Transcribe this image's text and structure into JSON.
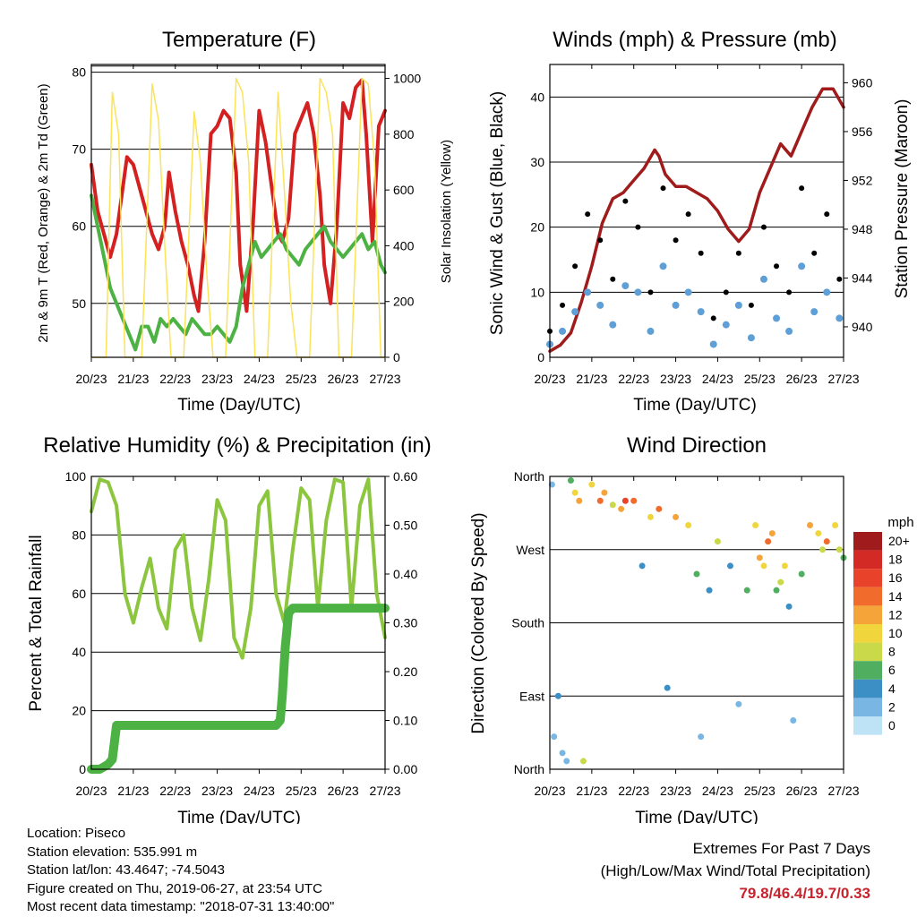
{
  "station": {
    "location": "Location: Piseco",
    "elevation": "Station elevation: 535.991 m",
    "latlon": "Station lat/lon: 43.4647; -74.5043",
    "created": "Figure created on Thu, 2019-06-27, at 23:54 UTC",
    "recent": "Most recent data timestamp: \"2018-07-31 13:40:00\""
  },
  "extremes": {
    "title": "Extremes For Past 7 Days",
    "subtitle": "(High/Low/Max Wind/Total Precipitation)",
    "values": "79.8/46.4/19.7/0.33"
  },
  "colors": {
    "temp2m": "#d42020",
    "temp9m": "#f08a24",
    "dewpoint": "#4cb244",
    "solar": "#fbe35a",
    "gust": "#000000",
    "wind": "#5d9fd6",
    "pressure": "#a01c1c",
    "rh": "#8cc63f",
    "precip": "#4cb244"
  },
  "chart_data": [
    {
      "id": "temperature",
      "type": "line",
      "title": "Temperature (F)",
      "xlabel": "Time (Day/UTC)",
      "ylabel": "2m & 9m T (Red, Orange) & 2m Td (Green)",
      "ylabel_right": "Solar Insolation (Yellow)",
      "xticks": [
        "20/23",
        "21/23",
        "22/23",
        "23/23",
        "24/23",
        "25/23",
        "26/23",
        "27/23"
      ],
      "ylim": [
        43,
        81
      ],
      "yticks": [
        50,
        60,
        70,
        80
      ],
      "ylim_right": [
        0,
        1050
      ],
      "yticks_right": [
        0,
        200,
        400,
        600,
        800,
        1000
      ],
      "grid": true,
      "series": [
        {
          "key": "temp2m",
          "axis": "left",
          "x": [
            0,
            0.15,
            0.3,
            0.45,
            0.6,
            0.75,
            0.85,
            1.0,
            1.15,
            1.3,
            1.45,
            1.6,
            1.75,
            1.85,
            2.0,
            2.15,
            2.3,
            2.45,
            2.55,
            2.7,
            2.85,
            3.0,
            3.15,
            3.3,
            3.45,
            3.55,
            3.7,
            3.85,
            4.0,
            4.15,
            4.3,
            4.45,
            4.55,
            4.7,
            4.85,
            5.0,
            5.15,
            5.3,
            5.45,
            5.55,
            5.7,
            5.85,
            6.0,
            6.15,
            6.3,
            6.45,
            6.55,
            6.7,
            6.85,
            7.0
          ],
          "y": [
            68,
            62,
            59,
            56,
            59,
            65,
            69,
            68,
            65,
            62,
            59,
            57,
            60,
            67,
            62,
            58,
            55,
            51,
            49,
            58,
            72,
            73,
            75,
            74,
            67,
            55,
            49,
            60,
            75,
            71,
            65,
            59,
            58,
            61,
            72,
            74,
            76,
            72,
            64,
            55,
            50,
            60,
            76,
            74,
            78,
            79,
            72,
            58,
            73,
            75
          ]
        },
        {
          "key": "dewpoint",
          "axis": "left",
          "x": [
            0,
            0.15,
            0.3,
            0.45,
            0.6,
            0.75,
            0.9,
            1.05,
            1.2,
            1.35,
            1.5,
            1.65,
            1.8,
            1.95,
            2.1,
            2.25,
            2.4,
            2.55,
            2.7,
            2.85,
            3.0,
            3.15,
            3.3,
            3.45,
            3.6,
            3.75,
            3.9,
            4.05,
            4.2,
            4.35,
            4.5,
            4.65,
            4.8,
            4.95,
            5.1,
            5.25,
            5.4,
            5.55,
            5.7,
            5.85,
            6.0,
            6.15,
            6.3,
            6.45,
            6.6,
            6.75,
            6.9,
            7.0
          ],
          "y": [
            64,
            60,
            56,
            52,
            50,
            48,
            46,
            44,
            47,
            47,
            45,
            48,
            47,
            48,
            47,
            46,
            48,
            47,
            46,
            46,
            47,
            46,
            45,
            47,
            52,
            55,
            58,
            56,
            57,
            58,
            59,
            57,
            56,
            55,
            57,
            58,
            59,
            60,
            58,
            57,
            56,
            57,
            58,
            59,
            57,
            58,
            55,
            54
          ]
        },
        {
          "key": "solar",
          "axis": "right",
          "x": [
            0,
            0.35,
            0.5,
            0.65,
            0.8,
            1.2,
            1.45,
            1.6,
            1.75,
            1.9,
            2.2,
            2.45,
            2.6,
            2.75,
            2.9,
            3.2,
            3.45,
            3.6,
            3.75,
            3.9,
            4.2,
            4.45,
            4.6,
            4.75,
            4.9,
            5.2,
            5.45,
            5.6,
            5.75,
            5.9,
            6.2,
            6.45,
            6.6,
            6.75,
            6.9,
            7.0
          ],
          "y": [
            0,
            0,
            950,
            800,
            0,
            0,
            980,
            850,
            400,
            0,
            0,
            880,
            700,
            300,
            0,
            0,
            1000,
            950,
            700,
            0,
            0,
            950,
            600,
            200,
            0,
            0,
            1000,
            950,
            800,
            0,
            0,
            1000,
            980,
            700,
            0,
            0
          ]
        }
      ]
    },
    {
      "id": "winds",
      "type": "line",
      "title": "Winds (mph) & Pressure (mb)",
      "xlabel": "Time (Day/UTC)",
      "ylabel": "Sonic Wind & Gust (Blue, Black)",
      "ylabel_right": "Station Pressure (Maroon)",
      "xticks": [
        "20/23",
        "21/23",
        "22/23",
        "23/23",
        "24/23",
        "25/23",
        "26/23",
        "27/23"
      ],
      "ylim": [
        0,
        45
      ],
      "yticks": [
        0,
        10,
        20,
        30,
        40
      ],
      "ylim_right": [
        937.5,
        961.5
      ],
      "yticks_right": [
        940,
        944,
        948,
        952,
        956,
        960
      ],
      "grid": true,
      "series": [
        {
          "key": "pressure",
          "axis": "right",
          "x": [
            0,
            0.25,
            0.5,
            0.75,
            1.0,
            1.25,
            1.5,
            1.75,
            2.0,
            2.25,
            2.5,
            2.6,
            2.75,
            3.0,
            3.25,
            3.5,
            3.75,
            4.0,
            4.25,
            4.5,
            4.75,
            5.0,
            5.25,
            5.5,
            5.75,
            6.0,
            6.25,
            6.5,
            6.75,
            7.0
          ],
          "y": [
            938,
            938.5,
            939.5,
            942,
            945,
            948.5,
            950.5,
            951,
            952,
            953,
            954.5,
            954,
            952.5,
            951.5,
            951.5,
            951,
            950.5,
            949.5,
            948,
            947,
            948,
            951,
            953,
            955,
            954,
            956,
            958,
            959.5,
            959.5,
            958
          ]
        },
        {
          "key": "gust",
          "axis": "left",
          "x": [
            0,
            0.3,
            0.6,
            0.9,
            1.2,
            1.5,
            1.8,
            2.1,
            2.4,
            2.7,
            3.0,
            3.3,
            3.6,
            3.9,
            4.2,
            4.5,
            4.8,
            5.1,
            5.4,
            5.7,
            6.0,
            6.3,
            6.6,
            6.9
          ],
          "y": [
            4,
            8,
            14,
            22,
            18,
            12,
            24,
            20,
            10,
            26,
            18,
            22,
            16,
            6,
            10,
            16,
            8,
            20,
            14,
            10,
            26,
            16,
            22,
            12
          ]
        },
        {
          "key": "wind",
          "axis": "left",
          "x": [
            0,
            0.3,
            0.6,
            0.9,
            1.2,
            1.5,
            1.8,
            2.1,
            2.4,
            2.7,
            3.0,
            3.3,
            3.6,
            3.9,
            4.2,
            4.5,
            4.8,
            5.1,
            5.4,
            5.7,
            6.0,
            6.3,
            6.6,
            6.9
          ],
          "y": [
            2,
            4,
            7,
            10,
            8,
            5,
            11,
            10,
            4,
            14,
            8,
            10,
            7,
            2,
            5,
            8,
            3,
            12,
            6,
            4,
            14,
            7,
            10,
            6
          ]
        }
      ]
    },
    {
      "id": "humidity",
      "type": "line",
      "title": "Relative Humidity (%) & Precipitation (in)",
      "xlabel": "Time (Day/UTC)",
      "ylabel": "Percent & Total Rainfall",
      "xticks": [
        "20/23",
        "21/23",
        "22/23",
        "23/23",
        "24/23",
        "25/23",
        "26/23",
        "27/23"
      ],
      "ylim": [
        0,
        100
      ],
      "yticks": [
        0,
        20,
        40,
        60,
        80,
        100
      ],
      "ylim_right": [
        0,
        0.6
      ],
      "yticks_right": [
        "0.00",
        "0.10",
        "0.20",
        "0.30",
        "0.40",
        "0.50",
        "0.60"
      ],
      "grid": true,
      "series": [
        {
          "key": "rh",
          "axis": "left",
          "x": [
            0,
            0.2,
            0.4,
            0.6,
            0.8,
            1.0,
            1.2,
            1.4,
            1.6,
            1.8,
            2.0,
            2.2,
            2.4,
            2.6,
            2.8,
            3.0,
            3.2,
            3.4,
            3.6,
            3.8,
            4.0,
            4.2,
            4.4,
            4.6,
            4.8,
            5.0,
            5.2,
            5.4,
            5.6,
            5.8,
            6.0,
            6.2,
            6.4,
            6.6,
            6.8,
            7.0
          ],
          "y": [
            88,
            99,
            98,
            90,
            60,
            50,
            62,
            72,
            55,
            48,
            75,
            80,
            55,
            44,
            65,
            92,
            85,
            45,
            38,
            55,
            90,
            95,
            60,
            50,
            75,
            96,
            92,
            55,
            85,
            99,
            98,
            55,
            90,
            99,
            60,
            45
          ]
        },
        {
          "key": "precip",
          "axis": "right",
          "x": [
            0,
            0.2,
            0.4,
            0.5,
            0.6,
            1.0,
            2.0,
            3.0,
            4.0,
            4.4,
            4.5,
            4.55,
            4.62,
            4.7,
            4.8,
            5.0,
            6.0,
            7.0
          ],
          "y": [
            0,
            0,
            0.01,
            0.02,
            0.09,
            0.09,
            0.09,
            0.09,
            0.09,
            0.09,
            0.1,
            0.15,
            0.25,
            0.32,
            0.33,
            0.33,
            0.33,
            0.33
          ]
        }
      ]
    },
    {
      "id": "direction",
      "type": "scatter",
      "title": "Wind Direction",
      "xlabel": "Time (Day/UTC)",
      "ylabel": "Direction (Colored By Speed)",
      "xticks": [
        "20/23",
        "21/23",
        "22/23",
        "23/23",
        "24/23",
        "25/23",
        "26/23",
        "27/23"
      ],
      "ylim": [
        0,
        360
      ],
      "yticks": [
        "North",
        "East",
        "South",
        "West",
        "North"
      ],
      "grid": true,
      "legend": {
        "title": "mph",
        "labels": [
          "20+",
          "18",
          "16",
          "14",
          "12",
          "10",
          "8",
          "6",
          "4",
          "2",
          "0"
        ],
        "colors": [
          "#a01c1c",
          "#d42a26",
          "#e8432a",
          "#f06b2c",
          "#f5a43a",
          "#f0d63c",
          "#c9d94a",
          "#4fae5f",
          "#3c8fc4",
          "#79b6e3",
          "#bfe3f6"
        ]
      },
      "series": [
        {
          "name": "",
          "x": [
            0.05,
            0.1,
            0.2,
            0.3,
            0.4,
            0.5,
            0.6,
            0.7,
            0.8,
            1.0,
            1.2,
            1.3,
            1.5,
            1.7,
            1.8,
            2.0,
            2.2,
            2.4,
            2.6,
            2.8,
            3.0,
            3.3,
            3.5,
            3.6,
            3.8,
            4.0,
            4.3,
            4.5,
            4.7,
            4.9,
            5.0,
            5.1,
            5.2,
            5.3,
            5.4,
            5.5,
            5.6,
            5.7,
            5.8,
            6.0,
            6.2,
            6.4,
            6.5,
            6.6,
            6.8,
            6.9,
            7.0
          ],
          "y": [
            350,
            40,
            90,
            20,
            10,
            355,
            340,
            330,
            10,
            350,
            330,
            340,
            325,
            320,
            330,
            330,
            250,
            310,
            320,
            100,
            310,
            300,
            240,
            40,
            220,
            280,
            250,
            80,
            220,
            300,
            260,
            250,
            280,
            290,
            220,
            230,
            250,
            200,
            60,
            240,
            300,
            290,
            270,
            280,
            300,
            270,
            260
          ],
          "speed": [
            2,
            1,
            3,
            2,
            1,
            6,
            10,
            12,
            8,
            10,
            14,
            12,
            8,
            12,
            16,
            14,
            4,
            10,
            14,
            4,
            12,
            10,
            6,
            2,
            4,
            8,
            4,
            2,
            6,
            10,
            12,
            10,
            14,
            12,
            6,
            8,
            10,
            4,
            2,
            6,
            12,
            10,
            8,
            14,
            10,
            8,
            6
          ]
        }
      ]
    }
  ]
}
